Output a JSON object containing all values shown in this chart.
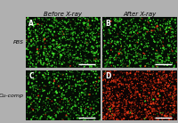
{
  "title_col1": "Before X-ray",
  "title_col2": "After X-ray",
  "label_row1": "PBS",
  "label_row2": "Cu-comp",
  "panel_labels": [
    "A",
    "B",
    "C",
    "D"
  ],
  "figure_bg": "#b0b0b0",
  "title_fontsize": 5.0,
  "label_fontsize": 4.5,
  "panel_label_fontsize": 5.5,
  "seed": 7,
  "panel_bg_A": "#050d05",
  "panel_bg_B": "#050d05",
  "panel_bg_C": "#050d05",
  "panel_bg_D": "#0d0505",
  "green_color": [
    0.1,
    0.85,
    0.1
  ],
  "green_bright": [
    0.3,
    1.0,
    0.2
  ],
  "green_dim": [
    0.05,
    0.4,
    0.05
  ],
  "red_color": [
    0.85,
    0.1,
    0.05
  ],
  "red_bright": [
    1.0,
    0.25,
    0.1
  ],
  "red_dim": [
    0.4,
    0.04,
    0.02
  ],
  "scale_bar_color": "#ffffff",
  "white_color": "#ffffff",
  "n_green_A": 900,
  "n_red_A": 40,
  "n_green_B": 750,
  "n_red_B": 60,
  "n_green_C": 600,
  "n_red_C": 40,
  "n_green_D": 30,
  "n_red_D": 1100
}
